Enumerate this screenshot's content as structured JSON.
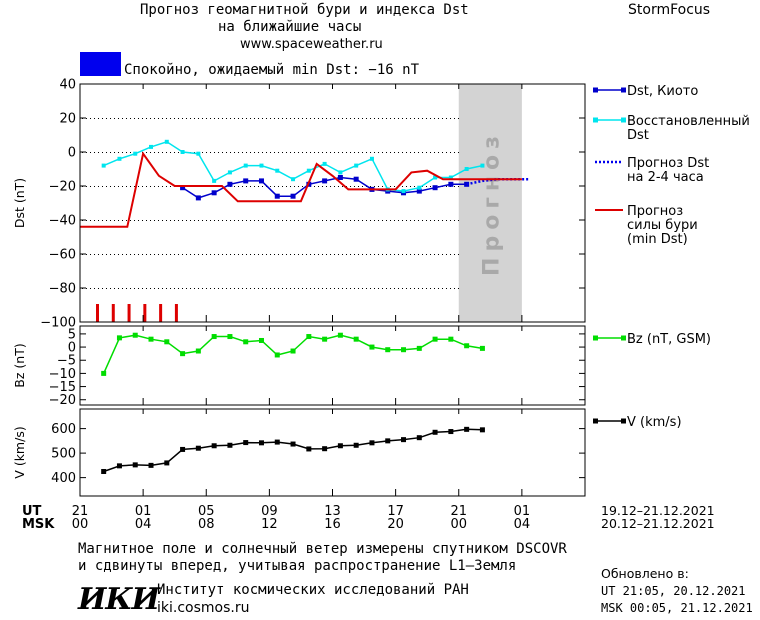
{
  "header": {
    "title_line1": "Прогноз геомагнитной бури и индекса Dst",
    "title_line2": "на ближайшие часы",
    "url": "www.spaceweather.ru",
    "brand": "StormFocus"
  },
  "status": {
    "text": "Спокойно, ожидаемый min Dst: −16 nT",
    "color": "#0000ee"
  },
  "chart_data": [
    {
      "type": "line",
      "ylabel": "Dst (nT)",
      "ylim": [
        -100,
        40
      ],
      "yticks": [
        "40",
        "20",
        "0",
        "−20",
        "−40",
        "−60",
        "−80",
        "−100"
      ],
      "x_hours": [
        0,
        32
      ],
      "forecast_band": {
        "from": 24,
        "to": 28,
        "label": "Прогноз",
        "color": "#d3d3d3"
      },
      "series": [
        {
          "name": "Dst, Киото",
          "color": "#0000cc",
          "x": [
            6,
            7,
            8,
            9,
            10,
            11,
            12,
            13,
            14,
            15,
            16,
            17,
            18,
            19,
            20,
            21,
            22,
            23,
            24
          ],
          "values": [
            -21,
            -27,
            -24,
            -19,
            -17,
            -17,
            -26,
            -26,
            -19,
            -17,
            -15,
            -16,
            -22,
            -23,
            -24,
            -23,
            -21,
            -19,
            -19
          ]
        },
        {
          "name": "Восстановленный Dst",
          "color": "#00e5ee",
          "x": [
            1,
            2,
            3,
            4,
            5,
            6,
            7,
            8,
            9,
            10,
            11,
            12,
            13,
            14,
            15,
            16,
            17,
            18,
            19,
            20,
            21,
            22,
            23,
            24,
            25
          ],
          "values": [
            -8,
            -4,
            -1,
            3,
            6,
            0,
            -1,
            -17,
            -12,
            -8,
            -8,
            -11,
            -16,
            -11,
            -7,
            -12,
            -8,
            -4,
            -22,
            -23,
            -21,
            -15,
            -15,
            -10,
            -8
          ]
        },
        {
          "name": "Прогноз Dst на 2-4 часа",
          "color": "#0000ee",
          "x": [
            24,
            25,
            26,
            27,
            28
          ],
          "values": [
            -19,
            -17,
            -16,
            -16,
            -16
          ]
        },
        {
          "name": "Прогноз силы бури (min Dst)",
          "color": "#dd0000",
          "x": [
            0,
            3,
            4,
            5,
            6,
            7,
            8,
            9,
            10,
            11,
            12,
            13,
            14,
            15,
            16,
            17,
            18,
            19,
            20,
            21,
            22,
            23,
            24,
            25,
            26,
            28
          ],
          "values": [
            -44,
            -44,
            -1,
            -14,
            -20,
            -20,
            -20,
            -20,
            -29,
            -29,
            -29,
            -29,
            -29,
            -7,
            -14,
            -22,
            -22,
            -22,
            -22,
            -12,
            -11,
            -16,
            -16,
            -16,
            -16,
            -16
          ]
        }
      ],
      "kp_bars": {
        "color": "#dd0000",
        "x": [
          0,
          1,
          2,
          3,
          4,
          5
        ]
      }
    },
    {
      "type": "line",
      "ylabel": "Bz (nT)",
      "ylim": [
        -22,
        8
      ],
      "yticks": [
        "5",
        "0",
        "−5",
        "−10",
        "−15",
        "−20"
      ],
      "series": [
        {
          "name": "Bz (nT, GSM)",
          "color": "#00dd00",
          "x": [
            1,
            2,
            3,
            4,
            5,
            6,
            7,
            8,
            9,
            10,
            11,
            12,
            13,
            14,
            15,
            16,
            17,
            18,
            19,
            20,
            21,
            22,
            23,
            24,
            25
          ],
          "values": [
            -10,
            3.5,
            4.5,
            3,
            2,
            -2.5,
            -1.5,
            4,
            4,
            2,
            2.5,
            -3,
            -1.5,
            4,
            3,
            4.5,
            3,
            0,
            -1,
            -1,
            -0.5,
            3,
            3,
            0.5,
            -0.5
          ]
        }
      ]
    },
    {
      "type": "line",
      "ylabel": "V (km/s)",
      "ylim": [
        325,
        680
      ],
      "yticks": [
        "400",
        "500",
        "600"
      ],
      "series": [
        {
          "name": "V (km/s)",
          "color": "#000000",
          "x": [
            1,
            2,
            3,
            4,
            5,
            6,
            7,
            8,
            9,
            10,
            11,
            12,
            13,
            14,
            15,
            16,
            17,
            18,
            19,
            20,
            21,
            22,
            23,
            24,
            25
          ],
          "values": [
            425,
            448,
            452,
            450,
            460,
            515,
            520,
            530,
            532,
            543,
            542,
            545,
            537,
            517,
            518,
            530,
            532,
            542,
            550,
            555,
            563,
            585,
            588,
            597,
            595
          ]
        }
      ]
    }
  ],
  "time_axis": {
    "ut_label": "UT",
    "msk_label": "MSK",
    "ut_ticks": [
      "21",
      "01",
      "05",
      "09",
      "13",
      "17",
      "21",
      "01"
    ],
    "msk_ticks": [
      "00",
      "04",
      "08",
      "12",
      "16",
      "20",
      "00",
      "04"
    ],
    "ut_range": "19.12–21.12.2021",
    "msk_range": "20.12–21.12.2021"
  },
  "footer": {
    "note_line1": "Магнитное поле и солнечный ветер измерены спутником DSCOVR",
    "note_line2": "и сдвинуты вперед, учитывая распространение L1–Земля",
    "logo": "ИКИ",
    "institute": "Институт космических исследований РАН",
    "site": "iki.cosmos.ru",
    "updated_title": "Обновлено в:",
    "updated_ut": "UT  21:05, 20.12.2021",
    "updated_msk": "MSK 00:05, 21.12.2021"
  }
}
